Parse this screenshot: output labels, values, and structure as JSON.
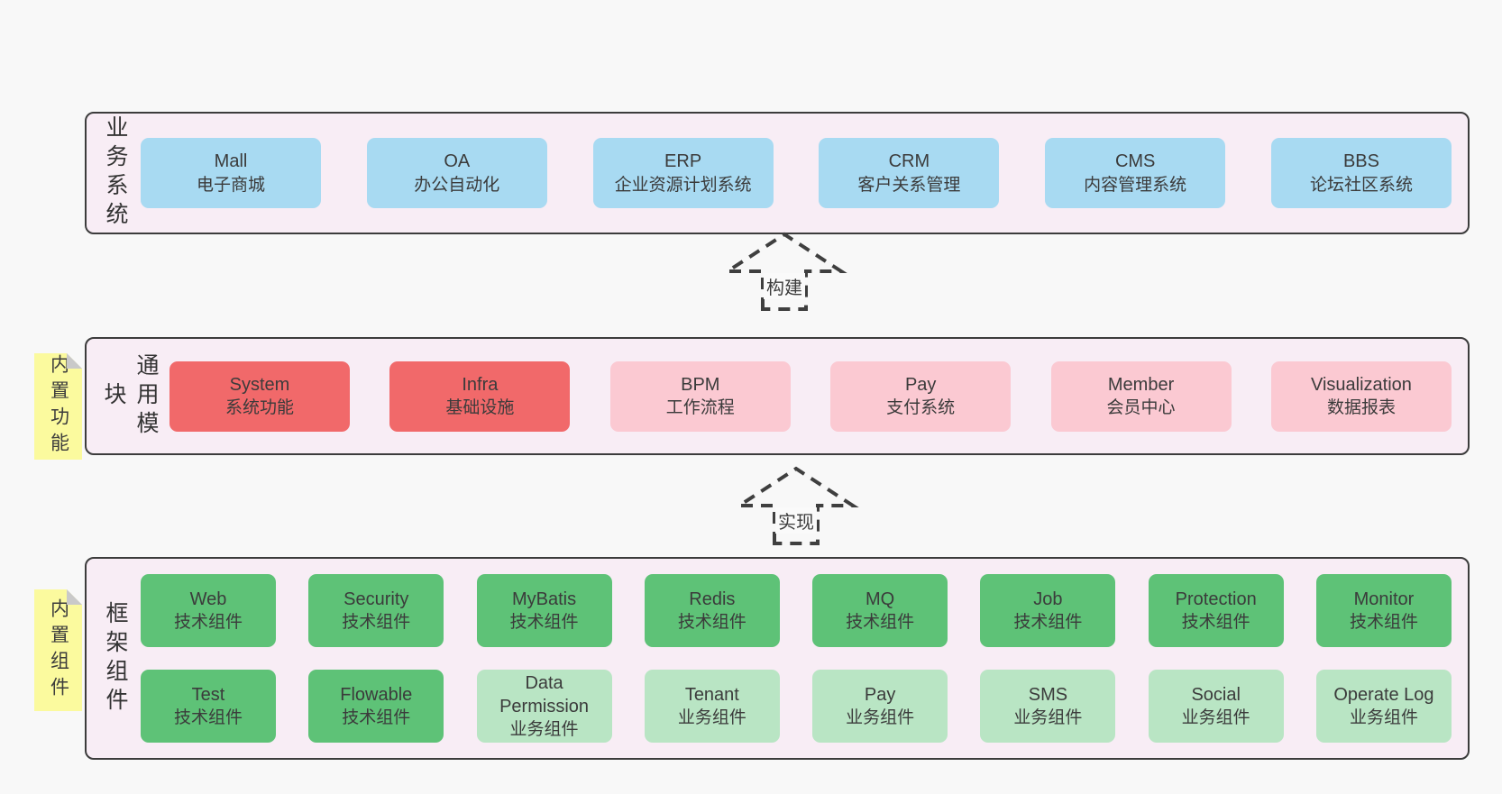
{
  "panels": [
    {
      "label": "业务系统",
      "rows": [
        [
          {
            "en": "Mall",
            "zh": "电子商城",
            "variant": "blue"
          },
          {
            "en": "OA",
            "zh": "办公自动化",
            "variant": "blue"
          },
          {
            "en": "ERP",
            "zh": "企业资源计划系统",
            "variant": "blue"
          },
          {
            "en": "CRM",
            "zh": "客户关系管理",
            "variant": "blue"
          },
          {
            "en": "CMS",
            "zh": "内容管理系统",
            "variant": "blue"
          },
          {
            "en": "BBS",
            "zh": "论坛社区系统",
            "variant": "blue"
          }
        ]
      ]
    },
    {
      "label": "通用模块",
      "rows": [
        [
          {
            "en": "System",
            "zh": "系统功能",
            "variant": "red"
          },
          {
            "en": "Infra",
            "zh": "基础设施",
            "variant": "red"
          },
          {
            "en": "BPM",
            "zh": "工作流程",
            "variant": "pink"
          },
          {
            "en": "Pay",
            "zh": "支付系统",
            "variant": "pink"
          },
          {
            "en": "Member",
            "zh": "会员中心",
            "variant": "pink"
          },
          {
            "en": "Visualization",
            "zh": "数据报表",
            "variant": "pink"
          }
        ]
      ]
    },
    {
      "label": "框架组件",
      "rows": [
        [
          {
            "en": "Web",
            "zh": "技术组件",
            "variant": "green"
          },
          {
            "en": "Security",
            "zh": "技术组件",
            "variant": "green"
          },
          {
            "en": "MyBatis",
            "zh": "技术组件",
            "variant": "green"
          },
          {
            "en": "Redis",
            "zh": "技术组件",
            "variant": "green"
          },
          {
            "en": "MQ",
            "zh": "技术组件",
            "variant": "green"
          },
          {
            "en": "Job",
            "zh": "技术组件",
            "variant": "green"
          },
          {
            "en": "Protection",
            "zh": "技术组件",
            "variant": "green"
          },
          {
            "en": "Monitor",
            "zh": "技术组件",
            "variant": "green"
          }
        ],
        [
          {
            "en": "Test",
            "zh": "技术组件",
            "variant": "green"
          },
          {
            "en": "Flowable",
            "zh": "技术组件",
            "variant": "green"
          },
          {
            "en": "Data Permission",
            "zh": "业务组件",
            "variant": "lightgreen"
          },
          {
            "en": "Tenant",
            "zh": "业务组件",
            "variant": "lightgreen"
          },
          {
            "en": "Pay",
            "zh": "业务组件",
            "variant": "lightgreen"
          },
          {
            "en": "SMS",
            "zh": "业务组件",
            "variant": "lightgreen"
          },
          {
            "en": "Social",
            "zh": "业务组件",
            "variant": "lightgreen"
          },
          {
            "en": "Operate Log",
            "zh": "业务组件",
            "variant": "lightgreen"
          }
        ]
      ]
    }
  ],
  "stickies": [
    {
      "label": "内置功能"
    },
    {
      "label": "内置组件"
    }
  ],
  "arrows": [
    {
      "label": "构建"
    },
    {
      "label": "实现"
    }
  ],
  "colors": {
    "page_bg": "#f8f8f8",
    "panel_bg": "#f8edf5",
    "panel_border": "#3c3c3c",
    "blue": "#a8daf2",
    "red": "#f1696a",
    "pink": "#fbc9d2",
    "green": "#5ec277",
    "lightgreen": "#b9e5c4",
    "sticky_yellow": "#fbfa9e",
    "sticky_fold": "#c9c9c9",
    "text": "#3b3b3b",
    "arrow": "#3f3f3f"
  }
}
